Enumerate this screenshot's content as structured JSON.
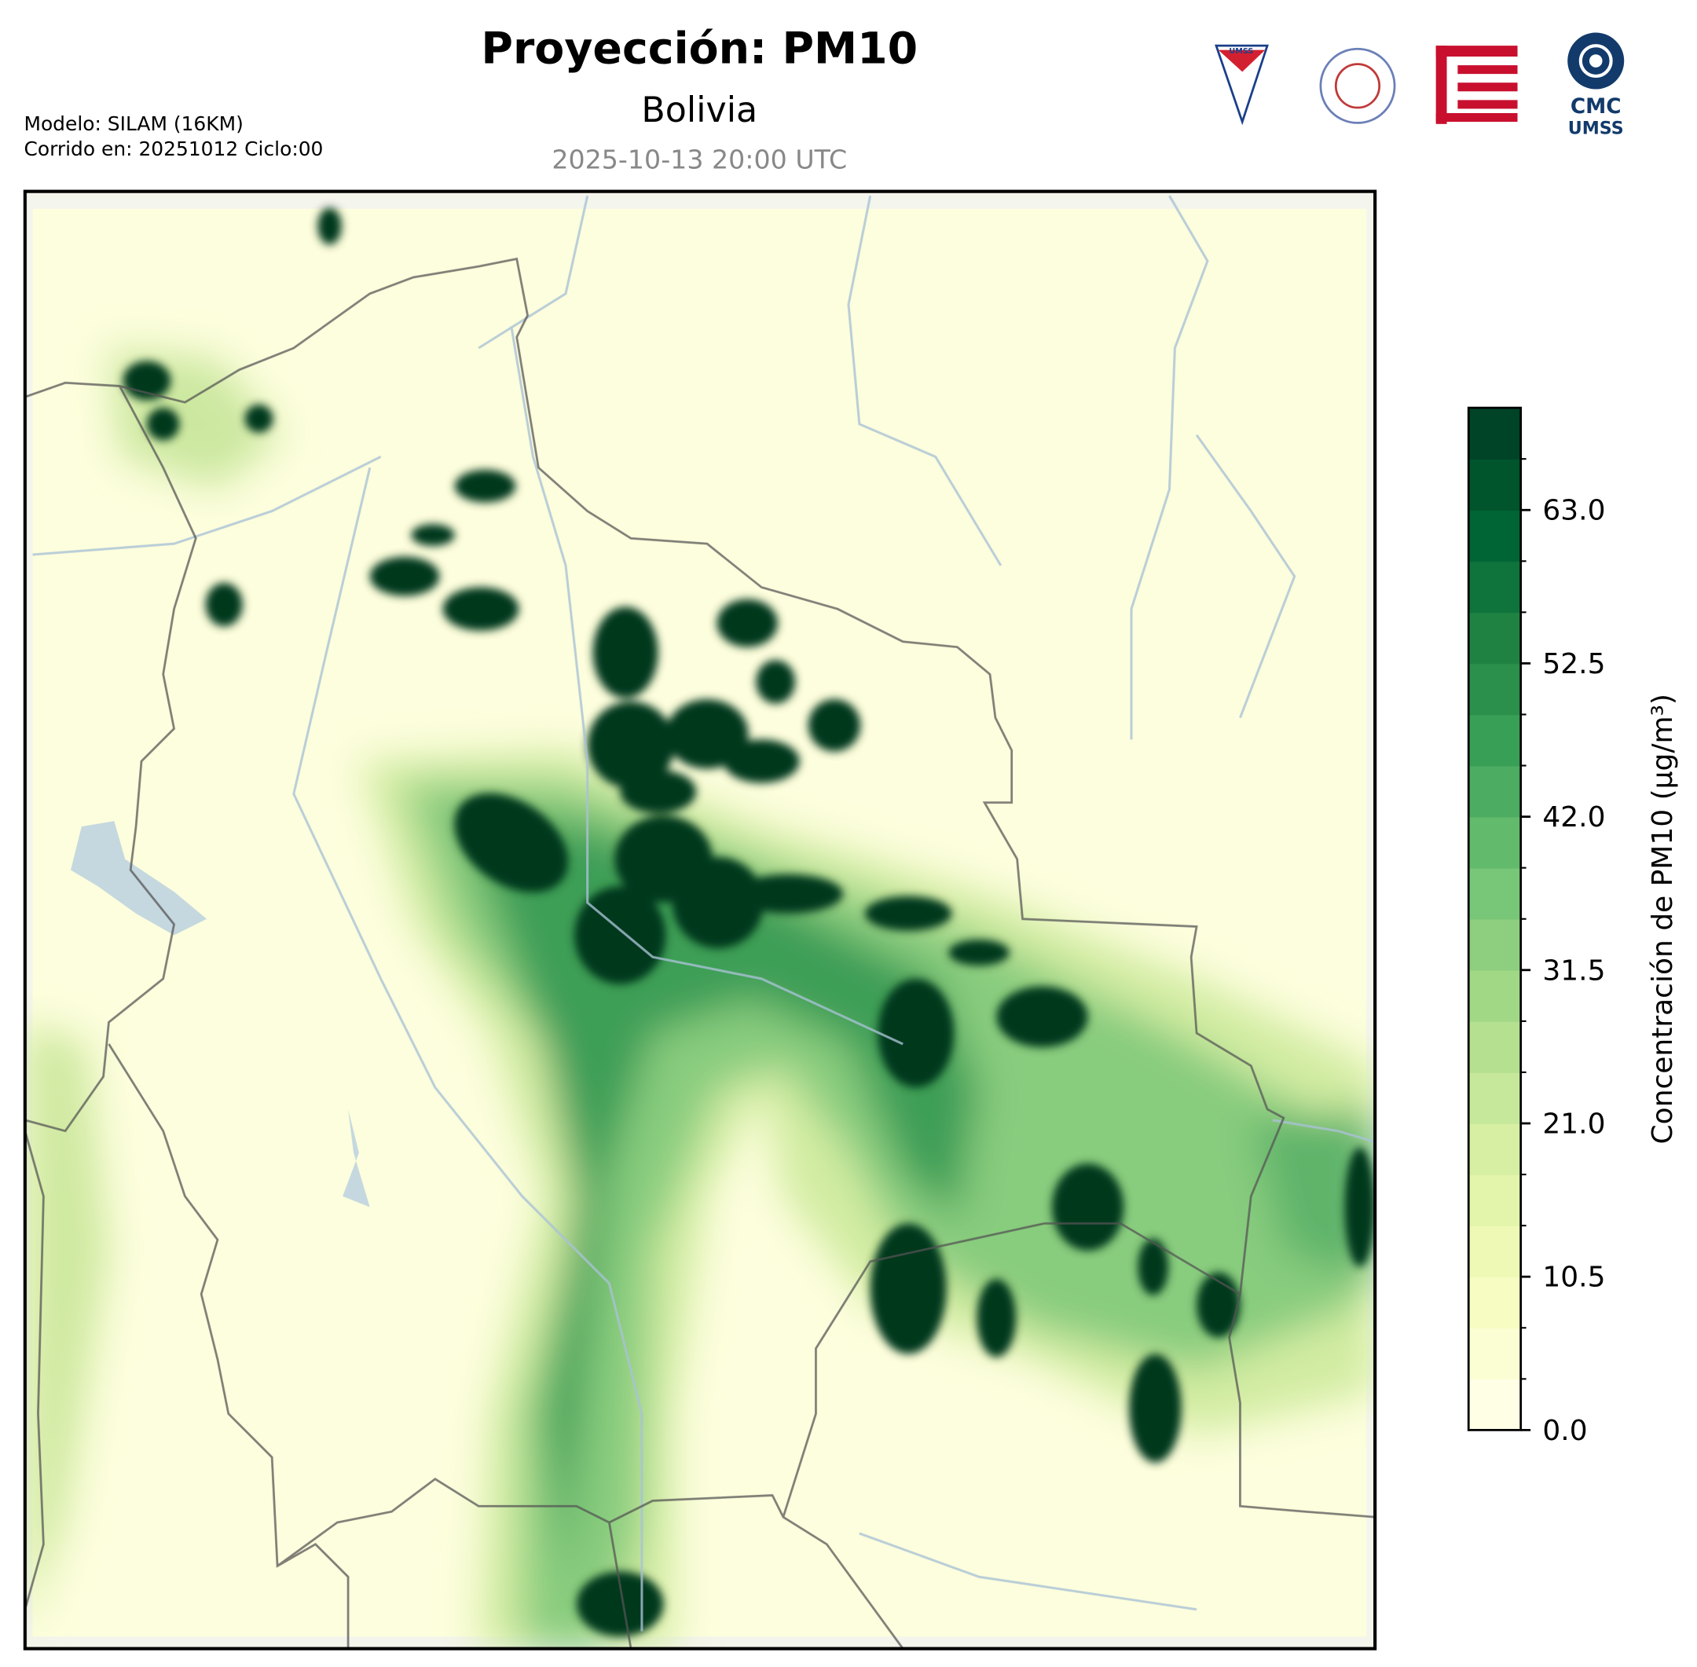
{
  "header": {
    "title": "Proyección: PM10",
    "subtitle": "Bolivia",
    "valid_time": "2025-10-13 20:00 UTC",
    "model": "Modelo: SILAM (16KM)",
    "run": "Corrido en: 20251012 Ciclo:00",
    "logos": [
      "UMSS",
      "CMC",
      "UMSS"
    ]
  },
  "colorbar": {
    "label": "Concentración de PM10 (μg/m³)",
    "lim": [
      0,
      70
    ],
    "ticks": [
      {
        "value": 0,
        "label": "0.0"
      },
      10.5,
      {
        "value": 21,
        "label": "21.0"
      },
      31.5,
      {
        "value": 42,
        "label": "42.0"
      },
      52.5,
      {
        "value": 63,
        "label": "63.0"
      }
    ],
    "colors": [
      "#ffffe5",
      "#fbfdd3",
      "#f7fcc2",
      "#eff9b6",
      "#e3f4ab",
      "#d7efa2",
      "#c6e89a",
      "#b4e090",
      "#a1d886",
      "#8dcf7f",
      "#78c678",
      "#62ba6d",
      "#4cac62",
      "#389f56",
      "#2b904b",
      "#1f8242",
      "#0e743b",
      "#006534",
      "#00552c",
      "#004427"
    ]
  }
}
